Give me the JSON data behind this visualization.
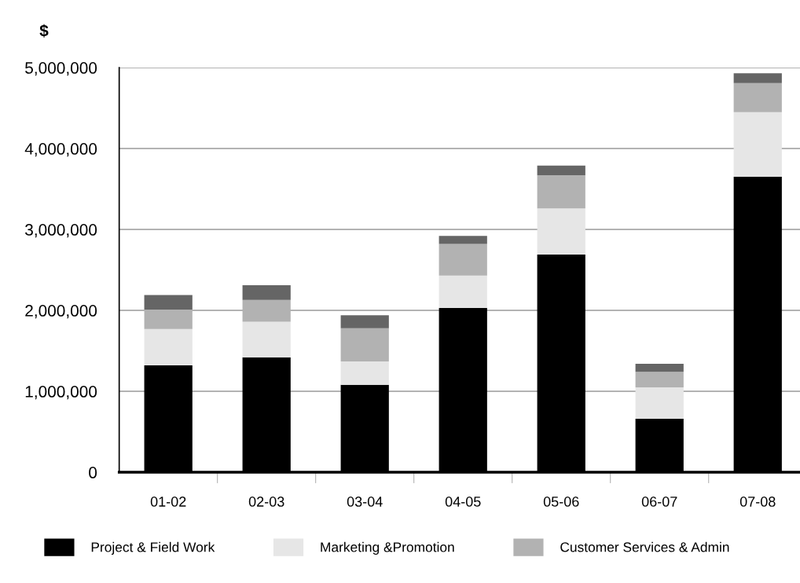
{
  "chart_data": {
    "type": "bar",
    "stacked": true,
    "ylabel": "$",
    "categories": [
      "01-02",
      "02-03",
      "03-04",
      "04-05",
      "05-06",
      "06-07",
      "07-08"
    ],
    "series": [
      {
        "name": "Project & Field Work",
        "color": "#000000",
        "values": [
          1320000,
          1420000,
          1080000,
          2030000,
          2690000,
          660000,
          3650000
        ]
      },
      {
        "name": "Marketing &Promotion",
        "color": "#e6e6e6",
        "values": [
          450000,
          440000,
          290000,
          400000,
          570000,
          390000,
          800000
        ]
      },
      {
        "name": "Customer Services & Admin",
        "color": "#b2b2b2",
        "values": [
          240000,
          270000,
          410000,
          390000,
          410000,
          190000,
          360000
        ]
      },
      {
        "color": "#656565",
        "values": [
          180000,
          180000,
          160000,
          100000,
          120000,
          100000,
          120000
        ]
      }
    ],
    "ylim": [
      0,
      5000000
    ],
    "yticks": [
      0,
      {
        "value": 1000000,
        "label": "1,000,000"
      },
      {
        "value": 2000000,
        "label": "2,000,000"
      },
      {
        "value": 3000000,
        "label": "3,000,000"
      },
      {
        "value": 4000000,
        "label": "4,000,000"
      },
      {
        "value": 5000000,
        "label": "5,000,000"
      }
    ],
    "grid": "y",
    "legend": "bottom"
  }
}
